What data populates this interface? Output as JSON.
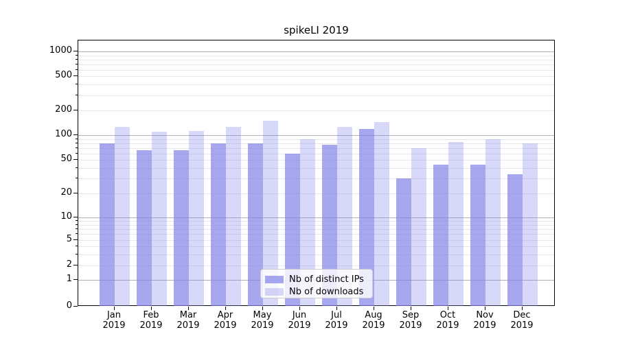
{
  "title": "spikeLI 2019",
  "chart_data": {
    "type": "bar",
    "title": "spikeLI 2019",
    "categories": [
      "Jan",
      "Feb",
      "Mar",
      "Apr",
      "May",
      "Jun",
      "Jul",
      "Aug",
      "Sep",
      "Oct",
      "Nov",
      "Dec"
    ],
    "category_year_label": "2019",
    "series": [
      {
        "name": "Nb of distinct IPs",
        "key": "distinct-ips",
        "color": "rgba(130,130,233,0.70)",
        "values": [
          80,
          66,
          66,
          80,
          80,
          60,
          77,
          118,
          30,
          44,
          44,
          34
        ]
      },
      {
        "name": "Nb of downloads",
        "key": "downloads",
        "color": "rgba(130,130,233,0.31)",
        "values": [
          125,
          110,
          113,
          126,
          150,
          90,
          127,
          143,
          70,
          83,
          90,
          80
        ]
      }
    ],
    "xlabel": "",
    "ylabel": "",
    "y_axis": {
      "scale": "symlog",
      "ticks": [
        0,
        1,
        2,
        5,
        10,
        20,
        50,
        100,
        200,
        500,
        1000
      ],
      "major_gridline_values": [
        1,
        10,
        100,
        1000
      ],
      "ylim_bottom": 0
    },
    "grid": "on",
    "legend_position": "lower center inside plot",
    "colors": {
      "axis": "#000000",
      "major_gridline": "#b0b0b0",
      "minor_gridline": "#e7e7e7",
      "legend_border": "#cccccc"
    }
  }
}
